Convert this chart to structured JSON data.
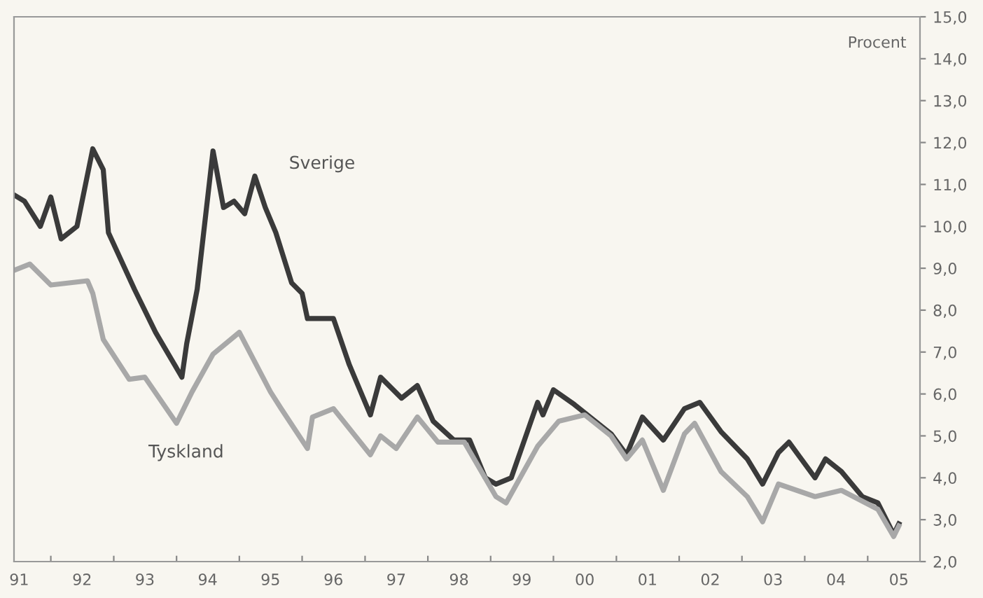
{
  "chart_data": {
    "type": "line",
    "ylabel": "Procent",
    "series": [
      {
        "name": "Sverige",
        "color": "#3a3a3a",
        "x": [
          "1991-06",
          "1991-08",
          "1991-11",
          "1992-01",
          "1992-03",
          "1992-06",
          "1992-09",
          "1992-11",
          "1992-12",
          "1993-05",
          "1993-09",
          "1994-02",
          "1994-03",
          "1994-05",
          "1994-08",
          "1994-10",
          "1994-12",
          "1995-02",
          "1995-04",
          "1995-06",
          "1995-08",
          "1995-11",
          "1996-01",
          "1996-02",
          "1996-07",
          "1996-10",
          "1997-02",
          "1997-04",
          "1997-08",
          "1997-11",
          "1998-02",
          "1998-06",
          "1998-09",
          "1998-12",
          "1999-02",
          "1999-05",
          "1999-10",
          "1999-11",
          "2000-01",
          "2000-05",
          "2000-12",
          "2001-03",
          "2001-06",
          "2001-10",
          "2002-02",
          "2002-05",
          "2002-09",
          "2003-02",
          "2003-05",
          "2003-08",
          "2003-10",
          "2004-03",
          "2004-05",
          "2004-08",
          "2004-12",
          "2005-03",
          "2005-06",
          "2005-07"
        ],
        "values": [
          10.75,
          10.6,
          10.0,
          10.7,
          9.7,
          10.0,
          11.85,
          11.35,
          9.85,
          8.5,
          7.47,
          6.4,
          7.2,
          8.5,
          11.8,
          10.45,
          10.6,
          10.3,
          11.2,
          10.45,
          9.85,
          8.65,
          8.4,
          7.8,
          7.8,
          6.7,
          5.5,
          6.4,
          5.9,
          6.2,
          5.35,
          4.9,
          4.9,
          4.0,
          3.85,
          4.0,
          5.8,
          5.5,
          6.1,
          5.75,
          5.05,
          4.55,
          5.45,
          4.9,
          5.65,
          5.8,
          5.1,
          4.45,
          3.85,
          4.6,
          4.85,
          4.0,
          4.45,
          4.15,
          3.55,
          3.4,
          2.65,
          2.9
        ]
      },
      {
        "name": "Tyskland",
        "color": "#a8a8a8",
        "x": [
          "1991-06",
          "1991-09",
          "1992-01",
          "1992-08",
          "1992-09",
          "1992-11",
          "1993-04",
          "1993-07",
          "1994-01",
          "1994-04",
          "1994-08",
          "1995-01",
          "1995-07",
          "1995-09",
          "1996-02",
          "1996-03",
          "1996-07",
          "1997-02",
          "1997-04",
          "1997-07",
          "1997-11",
          "1998-03",
          "1998-08",
          "1999-02",
          "1999-04",
          "1999-10",
          "2000-02",
          "2000-07",
          "2000-12",
          "2001-03",
          "2001-06",
          "2001-10",
          "2002-02",
          "2002-04",
          "2002-09",
          "2003-02",
          "2003-05",
          "2003-08",
          "2004-03",
          "2004-08",
          "2005-03",
          "2005-06",
          "2005-07"
        ],
        "values": [
          8.95,
          9.1,
          8.6,
          8.7,
          8.4,
          7.3,
          6.35,
          6.4,
          5.3,
          6.05,
          6.95,
          7.47,
          6.05,
          5.65,
          4.7,
          5.45,
          5.65,
          4.55,
          5.0,
          4.7,
          5.45,
          4.85,
          4.85,
          3.55,
          3.4,
          4.75,
          5.35,
          5.5,
          5.0,
          4.45,
          4.9,
          3.7,
          5.05,
          5.3,
          4.15,
          3.55,
          2.95,
          3.85,
          3.55,
          3.7,
          3.25,
          2.6,
          2.85
        ]
      }
    ],
    "xlim": [
      "1991-06",
      "2005-11"
    ],
    "xticks": [
      {
        "value": "1992",
        "label": null
      },
      {
        "value": "1993",
        "label": null
      },
      {
        "value": "1994",
        "label": null
      },
      {
        "value": "1995",
        "label": null
      },
      {
        "value": "1996",
        "label": null
      },
      {
        "value": "1997",
        "label": null
      },
      {
        "value": "1998",
        "label": null
      },
      {
        "value": "1999",
        "label": null
      },
      {
        "value": "2000",
        "label": null
      },
      {
        "value": "2001",
        "label": null
      },
      {
        "value": "2002",
        "label": null
      },
      {
        "value": "2003",
        "label": null
      },
      {
        "value": "2004",
        "label": null
      },
      {
        "value": "2005",
        "label": null
      },
      {
        "value": "1991-07",
        "label": "91"
      },
      {
        "value": "1992-07",
        "label": "92"
      },
      {
        "value": "1993-07",
        "label": "93"
      },
      {
        "value": "1994-07",
        "label": "94"
      },
      {
        "value": "1995-07",
        "label": "95"
      },
      {
        "value": "1996-07",
        "label": "96"
      },
      {
        "value": "1997-07",
        "label": "97"
      },
      {
        "value": "1998-07",
        "label": "98"
      },
      {
        "value": "1999-07",
        "label": "99"
      },
      {
        "value": "2000-07",
        "label": "00"
      },
      {
        "value": "2001-07",
        "label": "01"
      },
      {
        "value": "2002-07",
        "label": "02"
      },
      {
        "value": "2003-07",
        "label": "03"
      },
      {
        "value": "2004-07",
        "label": "04"
      },
      {
        "value": "2005-07",
        "label": "05"
      }
    ],
    "ylim": [
      2,
      15
    ],
    "yticks": [
      {
        "value": 2,
        "label": "2,0"
      },
      {
        "value": 3,
        "label": "3,0"
      },
      {
        "value": 4,
        "label": "4,0"
      },
      {
        "value": 5,
        "label": "5,0"
      },
      {
        "value": 6,
        "label": "6,0"
      },
      {
        "value": 7,
        "label": "7,0"
      },
      {
        "value": 8,
        "label": "8,0"
      },
      {
        "value": 9,
        "label": "9,0"
      },
      {
        "value": 10,
        "label": "10,0"
      },
      {
        "value": 11,
        "label": "11,0"
      },
      {
        "value": 12,
        "label": "12,0"
      },
      {
        "value": 13,
        "label": "13,0"
      },
      {
        "value": 14,
        "label": "14,0"
      },
      {
        "value": 15,
        "label": "15,0"
      }
    ],
    "grid": false,
    "legend": false,
    "marker": "none",
    "line_style": "solid"
  }
}
